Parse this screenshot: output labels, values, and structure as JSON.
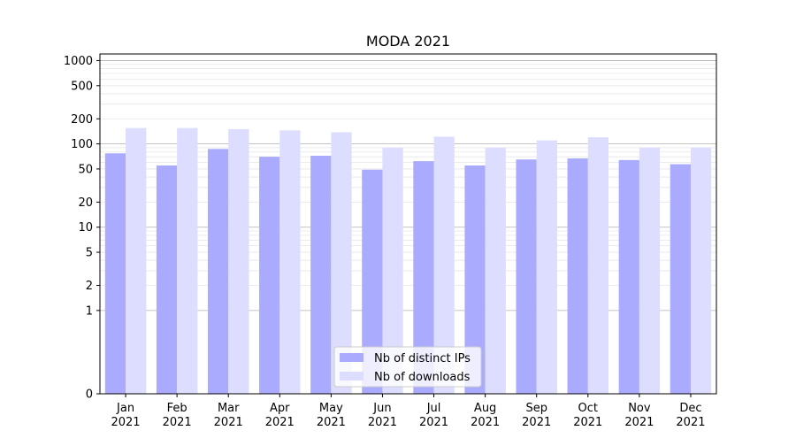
{
  "chart_data": {
    "type": "bar",
    "title": "MODA 2021",
    "xlabel": "",
    "ylabel": "",
    "yscale": "symlog",
    "ylim": [
      0,
      1200
    ],
    "y_ticks": [
      {
        "value": 0,
        "label": "0"
      },
      {
        "value": 1,
        "label": "1"
      },
      {
        "value": 2,
        "label": "2"
      },
      {
        "value": 5,
        "label": "5"
      },
      {
        "value": 10,
        "label": "10"
      },
      {
        "value": 20,
        "label": "20"
      },
      {
        "value": 50,
        "label": "50"
      },
      {
        "value": 100,
        "label": "100"
      },
      {
        "value": 200,
        "label": "200"
      },
      {
        "value": 500,
        "label": "500"
      },
      {
        "value": 1000,
        "label": "1000"
      }
    ],
    "grid": true,
    "legend_position": "bottom-center",
    "categories": [
      [
        "Jan",
        "2021"
      ],
      [
        "Feb",
        "2021"
      ],
      [
        "Mar",
        "2021"
      ],
      [
        "Apr",
        "2021"
      ],
      [
        "May",
        "2021"
      ],
      [
        "Jun",
        "2021"
      ],
      [
        "Jul",
        "2021"
      ],
      [
        "Aug",
        "2021"
      ],
      [
        "Sep",
        "2021"
      ],
      [
        "Oct",
        "2021"
      ],
      [
        "Nov",
        "2021"
      ],
      [
        "Dec",
        "2021"
      ]
    ],
    "series": [
      {
        "name": "Nb of distinct IPs",
        "color": "#aaaaff",
        "values": [
          77,
          55,
          87,
          70,
          72,
          49,
          62,
          55,
          65,
          67,
          64,
          57
        ]
      },
      {
        "name": "Nb of downloads",
        "color": "#ddddff",
        "values": [
          155,
          155,
          150,
          145,
          138,
          90,
          122,
          90,
          110,
          120,
          90,
          90
        ]
      }
    ]
  }
}
